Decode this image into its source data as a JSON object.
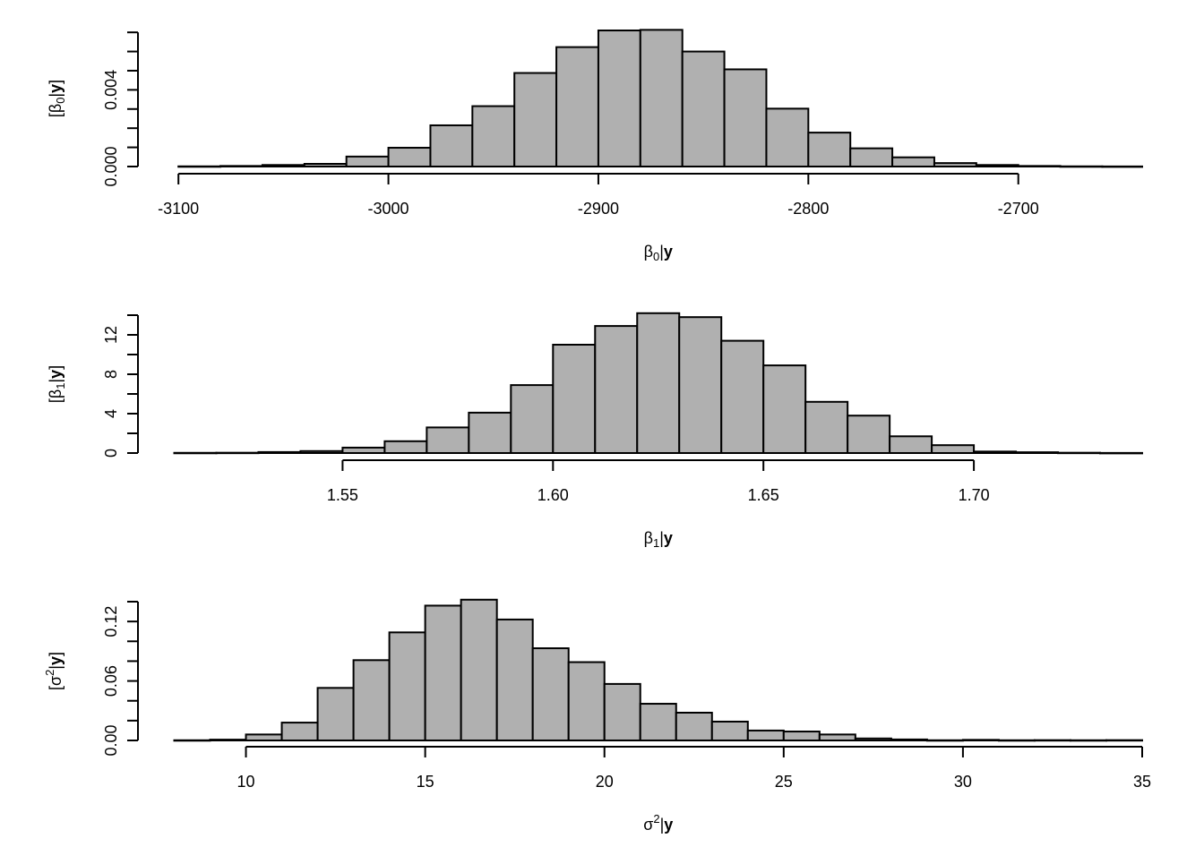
{
  "colors": {
    "bar_fill": "#b0b0b0",
    "bar_stroke": "#000000",
    "axis": "#000000",
    "background": "#ffffff"
  },
  "chart_data": [
    {
      "type": "histogram",
      "xlabel": {
        "sym": "β",
        "sub": "0",
        "sup": "",
        "rest": "|y"
      },
      "ylabel": {
        "sym": "β",
        "sub": "0",
        "sup": "",
        "rest": "|y"
      },
      "xlim": [
        -3102,
        -2641
      ],
      "ylim": [
        0,
        0.0071
      ],
      "xticks": [
        {
          "value": -3100,
          "label": "-3100"
        },
        {
          "value": -3000,
          "label": "-3000"
        },
        {
          "value": -2900,
          "label": "-2900"
        },
        {
          "value": -2800,
          "label": "-2800"
        },
        {
          "value": -2700,
          "label": "-2700"
        }
      ],
      "yticks": [
        {
          "value": 0.0,
          "label": "0.000"
        },
        {
          "value": 0.001,
          "label": ""
        },
        {
          "value": 0.002,
          "label": ""
        },
        {
          "value": 0.003,
          "label": ""
        },
        {
          "value": 0.004,
          "label": "0.004"
        },
        {
          "value": 0.005,
          "label": ""
        },
        {
          "value": 0.006,
          "label": ""
        },
        {
          "value": 0.007,
          "label": ""
        }
      ],
      "bins": [
        {
          "x0": -3100,
          "x1": -3080,
          "y": 1e-05
        },
        {
          "x0": -3080,
          "x1": -3060,
          "y": 3e-05
        },
        {
          "x0": -3060,
          "x1": -3040,
          "y": 8e-05
        },
        {
          "x0": -3040,
          "x1": -3020,
          "y": 0.00014
        },
        {
          "x0": -3020,
          "x1": -3000,
          "y": 0.00052
        },
        {
          "x0": -3000,
          "x1": -2980,
          "y": 0.00098
        },
        {
          "x0": -2980,
          "x1": -2960,
          "y": 0.00215
        },
        {
          "x0": -2960,
          "x1": -2940,
          "y": 0.00315
        },
        {
          "x0": -2940,
          "x1": -2920,
          "y": 0.00488
        },
        {
          "x0": -2920,
          "x1": -2900,
          "y": 0.00623
        },
        {
          "x0": -2900,
          "x1": -2880,
          "y": 0.0071
        },
        {
          "x0": -2880,
          "x1": -2860,
          "y": 0.00713
        },
        {
          "x0": -2860,
          "x1": -2840,
          "y": 0.006
        },
        {
          "x0": -2840,
          "x1": -2820,
          "y": 0.00507
        },
        {
          "x0": -2820,
          "x1": -2800,
          "y": 0.00302
        },
        {
          "x0": -2800,
          "x1": -2780,
          "y": 0.00177
        },
        {
          "x0": -2780,
          "x1": -2760,
          "y": 0.00095
        },
        {
          "x0": -2760,
          "x1": -2740,
          "y": 0.00048
        },
        {
          "x0": -2740,
          "x1": -2720,
          "y": 0.00018
        },
        {
          "x0": -2720,
          "x1": -2700,
          "y": 8e-05
        },
        {
          "x0": -2700,
          "x1": -2680,
          "y": 3e-05
        },
        {
          "x0": -2680,
          "x1": -2660,
          "y": 1e-05
        },
        {
          "x0": -2660,
          "x1": -2641,
          "y": 5e-06
        }
      ]
    },
    {
      "type": "histogram",
      "xlabel": {
        "sym": "β",
        "sub": "1",
        "sup": "",
        "rest": "|y"
      },
      "ylabel": {
        "sym": "β",
        "sub": "1",
        "sup": "",
        "rest": "|y"
      },
      "xlim": [
        1.51,
        1.74
      ],
      "ylim": [
        0,
        14
      ],
      "xticks": [
        {
          "value": 1.55,
          "label": "1.55"
        },
        {
          "value": 1.6,
          "label": "1.60"
        },
        {
          "value": 1.65,
          "label": "1.65"
        },
        {
          "value": 1.7,
          "label": "1.70"
        }
      ],
      "yticks": [
        {
          "value": 0,
          "label": "0"
        },
        {
          "value": 2,
          "label": ""
        },
        {
          "value": 4,
          "label": "4"
        },
        {
          "value": 6,
          "label": ""
        },
        {
          "value": 8,
          "label": "8"
        },
        {
          "value": 10,
          "label": ""
        },
        {
          "value": 12,
          "label": "12"
        },
        {
          "value": 14,
          "label": ""
        }
      ],
      "bins": [
        {
          "x0": 1.51,
          "x1": 1.52,
          "y": 0.02
        },
        {
          "x0": 1.52,
          "x1": 1.53,
          "y": 0.03
        },
        {
          "x0": 1.53,
          "x1": 1.54,
          "y": 0.1
        },
        {
          "x0": 1.54,
          "x1": 1.55,
          "y": 0.2
        },
        {
          "x0": 1.55,
          "x1": 1.56,
          "y": 0.55
        },
        {
          "x0": 1.56,
          "x1": 1.57,
          "y": 1.2
        },
        {
          "x0": 1.57,
          "x1": 1.58,
          "y": 2.6
        },
        {
          "x0": 1.58,
          "x1": 1.59,
          "y": 4.1
        },
        {
          "x0": 1.59,
          "x1": 1.6,
          "y": 6.9
        },
        {
          "x0": 1.6,
          "x1": 1.61,
          "y": 11.0
        },
        {
          "x0": 1.61,
          "x1": 1.62,
          "y": 12.9
        },
        {
          "x0": 1.62,
          "x1": 1.63,
          "y": 14.2
        },
        {
          "x0": 1.63,
          "x1": 1.64,
          "y": 13.8
        },
        {
          "x0": 1.64,
          "x1": 1.65,
          "y": 11.4
        },
        {
          "x0": 1.65,
          "x1": 1.66,
          "y": 8.9
        },
        {
          "x0": 1.66,
          "x1": 1.67,
          "y": 5.2
        },
        {
          "x0": 1.67,
          "x1": 1.68,
          "y": 3.8
        },
        {
          "x0": 1.68,
          "x1": 1.69,
          "y": 1.7
        },
        {
          "x0": 1.69,
          "x1": 1.7,
          "y": 0.8
        },
        {
          "x0": 1.7,
          "x1": 1.71,
          "y": 0.15
        },
        {
          "x0": 1.71,
          "x1": 1.72,
          "y": 0.08
        },
        {
          "x0": 1.72,
          "x1": 1.73,
          "y": 0.03
        },
        {
          "x0": 1.73,
          "x1": 1.74,
          "y": 0.01
        }
      ]
    },
    {
      "type": "histogram",
      "xlabel": {
        "sym": "σ",
        "sub": "",
        "sup": "2",
        "rest": "|y"
      },
      "ylabel": {
        "sym": "σ",
        "sub": "",
        "sup": "2",
        "rest": "|y"
      },
      "xlim": [
        8,
        35
      ],
      "ylim": [
        0,
        0.14
      ],
      "xticks": [
        {
          "value": 10,
          "label": "10"
        },
        {
          "value": 15,
          "label": "15"
        },
        {
          "value": 20,
          "label": "20"
        },
        {
          "value": 25,
          "label": "25"
        },
        {
          "value": 30,
          "label": "30"
        },
        {
          "value": 35,
          "label": "35"
        }
      ],
      "yticks": [
        {
          "value": 0.0,
          "label": "0.00"
        },
        {
          "value": 0.02,
          "label": ""
        },
        {
          "value": 0.04,
          "label": ""
        },
        {
          "value": 0.06,
          "label": "0.06"
        },
        {
          "value": 0.08,
          "label": ""
        },
        {
          "value": 0.1,
          "label": ""
        },
        {
          "value": 0.12,
          "label": "0.12"
        },
        {
          "value": 0.14,
          "label": ""
        }
      ],
      "bins": [
        {
          "x0": 8,
          "x1": 9,
          "y": 0.0002
        },
        {
          "x0": 9,
          "x1": 10,
          "y": 0.0008
        },
        {
          "x0": 10,
          "x1": 11,
          "y": 0.006
        },
        {
          "x0": 11,
          "x1": 12,
          "y": 0.018
        },
        {
          "x0": 12,
          "x1": 13,
          "y": 0.053
        },
        {
          "x0": 13,
          "x1": 14,
          "y": 0.081
        },
        {
          "x0": 14,
          "x1": 15,
          "y": 0.109
        },
        {
          "x0": 15,
          "x1": 16,
          "y": 0.136
        },
        {
          "x0": 16,
          "x1": 17,
          "y": 0.142
        },
        {
          "x0": 17,
          "x1": 18,
          "y": 0.122
        },
        {
          "x0": 18,
          "x1": 19,
          "y": 0.093
        },
        {
          "x0": 19,
          "x1": 20,
          "y": 0.079
        },
        {
          "x0": 20,
          "x1": 21,
          "y": 0.057
        },
        {
          "x0": 21,
          "x1": 22,
          "y": 0.037
        },
        {
          "x0": 22,
          "x1": 23,
          "y": 0.028
        },
        {
          "x0": 23,
          "x1": 24,
          "y": 0.019
        },
        {
          "x0": 24,
          "x1": 25,
          "y": 0.01
        },
        {
          "x0": 25,
          "x1": 26,
          "y": 0.009
        },
        {
          "x0": 26,
          "x1": 27,
          "y": 0.006
        },
        {
          "x0": 27,
          "x1": 28,
          "y": 0.002
        },
        {
          "x0": 28,
          "x1": 29,
          "y": 0.001
        },
        {
          "x0": 29,
          "x1": 30,
          "y": 0.0002
        },
        {
          "x0": 30,
          "x1": 31,
          "y": 0.0006
        },
        {
          "x0": 31,
          "x1": 32,
          "y": 0.0002
        },
        {
          "x0": 32,
          "x1": 33,
          "y": 0.0003
        },
        {
          "x0": 33,
          "x1": 34,
          "y": 0.0002
        },
        {
          "x0": 34,
          "x1": 35,
          "y": 0.0003
        }
      ]
    }
  ]
}
